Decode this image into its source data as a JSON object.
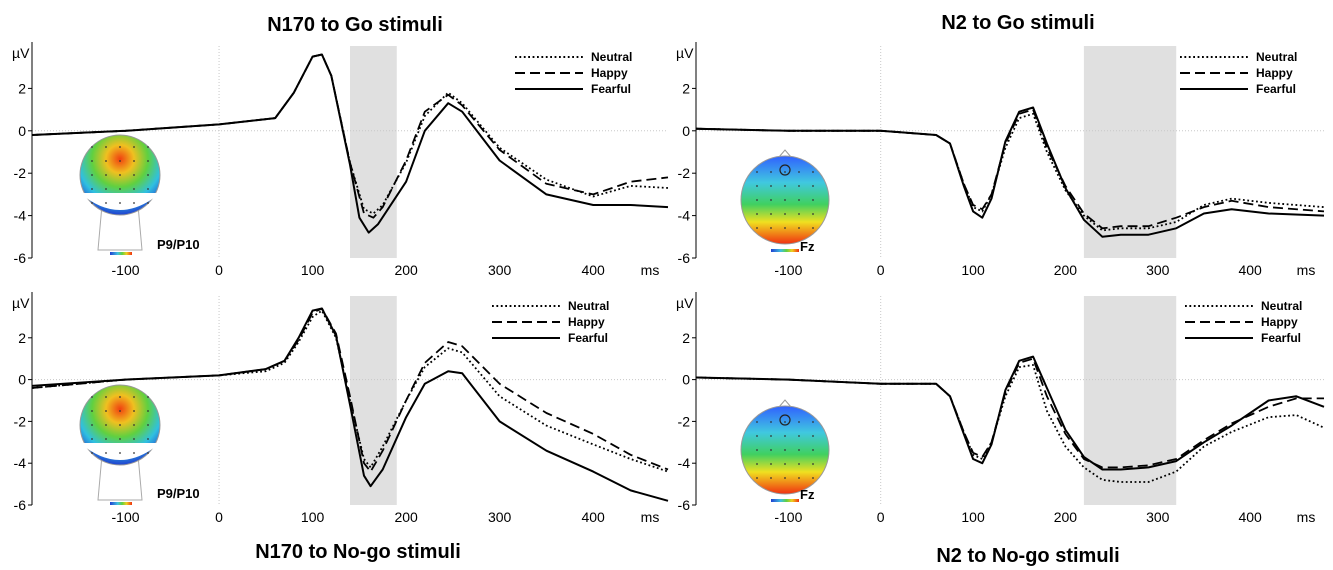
{
  "titles": {
    "n170_go": "N170 to Go stimuli",
    "n2_go": "N2 to Go stimuli",
    "n170_nogo": "N170 to No-go stimuli",
    "n2_nogo": "N2 to No-go stimuli"
  },
  "chart_data": [
    {
      "id": "n170_go",
      "type": "line",
      "title": "N170 to Go stimuli",
      "ylabel": "µV",
      "xlabel": "ms",
      "xlim": [
        -200,
        480
      ],
      "ylim": [
        -6,
        4
      ],
      "xticks": [
        -100,
        0,
        100,
        200,
        300,
        400
      ],
      "yticks": [
        -6,
        -4,
        -2,
        0,
        2
      ],
      "shaded_window_ms": [
        140,
        190
      ],
      "electrode_label": "P9/P10",
      "legend": [
        "Neutral",
        "Happy",
        "Fearful"
      ],
      "series": [
        {
          "name": "Neutral",
          "style": "dotted",
          "x": [
            -200,
            -100,
            0,
            60,
            80,
            100,
            110,
            120,
            140,
            155,
            165,
            175,
            200,
            220,
            245,
            260,
            300,
            350,
            400,
            440,
            480
          ],
          "y": [
            -0.2,
            0.0,
            0.3,
            0.6,
            1.8,
            3.5,
            3.6,
            2.6,
            -1.5,
            -3.7,
            -3.9,
            -3.5,
            -1.5,
            0.7,
            1.8,
            1.3,
            -0.8,
            -2.3,
            -3.1,
            -2.6,
            -2.7
          ]
        },
        {
          "name": "Happy",
          "style": "dashed",
          "x": [
            -200,
            -100,
            0,
            60,
            80,
            100,
            110,
            120,
            140,
            155,
            165,
            175,
            200,
            220,
            245,
            260,
            300,
            350,
            400,
            440,
            480
          ],
          "y": [
            -0.2,
            0.0,
            0.3,
            0.6,
            1.8,
            3.5,
            3.6,
            2.6,
            -1.5,
            -3.9,
            -4.1,
            -3.6,
            -1.4,
            0.9,
            1.7,
            1.2,
            -0.9,
            -2.5,
            -3.0,
            -2.4,
            -2.2
          ]
        },
        {
          "name": "Fearful",
          "style": "solid",
          "x": [
            -200,
            -100,
            0,
            60,
            80,
            100,
            110,
            120,
            140,
            150,
            160,
            170,
            200,
            220,
            245,
            260,
            300,
            350,
            400,
            440,
            480
          ],
          "y": [
            -0.2,
            0.0,
            0.3,
            0.6,
            1.8,
            3.5,
            3.6,
            2.6,
            -1.6,
            -4.1,
            -4.8,
            -4.4,
            -2.4,
            0.0,
            1.3,
            0.9,
            -1.4,
            -3.0,
            -3.5,
            -3.5,
            -3.6
          ]
        }
      ]
    },
    {
      "id": "n2_go",
      "type": "line",
      "title": "N2 to Go stimuli",
      "ylabel": "µV",
      "xlabel": "ms",
      "xlim": [
        -200,
        480
      ],
      "ylim": [
        -6,
        4
      ],
      "xticks": [
        -100,
        0,
        100,
        200,
        300,
        400
      ],
      "yticks": [
        -6,
        -4,
        -2,
        0,
        2
      ],
      "shaded_window_ms": [
        220,
        320
      ],
      "electrode_label": "Fz",
      "legend": [
        "Neutral",
        "Happy",
        "Fearful"
      ],
      "series": [
        {
          "name": "Neutral",
          "style": "dotted",
          "x": [
            -200,
            -100,
            0,
            60,
            75,
            90,
            100,
            110,
            120,
            135,
            150,
            165,
            180,
            200,
            220,
            240,
            260,
            290,
            320,
            350,
            380,
            420,
            480
          ],
          "y": [
            0.1,
            0.0,
            0.0,
            -0.2,
            -0.6,
            -2.5,
            -3.6,
            -3.8,
            -3.0,
            -0.8,
            0.6,
            0.8,
            -1.0,
            -2.8,
            -4.0,
            -4.7,
            -4.6,
            -4.6,
            -4.3,
            -3.5,
            -3.2,
            -3.4,
            -3.6
          ]
        },
        {
          "name": "Happy",
          "style": "dashed",
          "x": [
            -200,
            -100,
            0,
            60,
            75,
            90,
            100,
            110,
            120,
            135,
            150,
            165,
            180,
            200,
            220,
            240,
            260,
            290,
            320,
            350,
            380,
            420,
            480
          ],
          "y": [
            0.1,
            0.0,
            0.0,
            -0.2,
            -0.6,
            -2.5,
            -3.5,
            -3.7,
            -3.0,
            -0.6,
            0.8,
            1.0,
            -0.8,
            -2.6,
            -3.9,
            -4.6,
            -4.5,
            -4.5,
            -4.1,
            -3.6,
            -3.3,
            -3.6,
            -3.8
          ]
        },
        {
          "name": "Fearful",
          "style": "solid",
          "x": [
            -200,
            -100,
            0,
            60,
            75,
            90,
            100,
            110,
            120,
            135,
            150,
            165,
            180,
            200,
            220,
            240,
            260,
            290,
            320,
            350,
            380,
            420,
            480
          ],
          "y": [
            0.1,
            0.0,
            0.0,
            -0.2,
            -0.6,
            -2.6,
            -3.8,
            -4.1,
            -3.2,
            -0.5,
            0.9,
            1.1,
            -0.6,
            -2.7,
            -4.2,
            -5.0,
            -4.9,
            -4.9,
            -4.6,
            -3.9,
            -3.7,
            -3.9,
            -4.0
          ]
        }
      ]
    },
    {
      "id": "n170_nogo",
      "type": "line",
      "title": "N170 to No-go stimuli",
      "ylabel": "µV",
      "xlabel": "ms",
      "xlim": [
        -200,
        480
      ],
      "ylim": [
        -6,
        4
      ],
      "xticks": [
        -100,
        0,
        100,
        200,
        300,
        400
      ],
      "yticks": [
        -6,
        -4,
        -2,
        0,
        2
      ],
      "shaded_window_ms": [
        140,
        190
      ],
      "electrode_label": "P9/P10",
      "legend": [
        "Neutral",
        "Happy",
        "Fearful"
      ],
      "series": [
        {
          "name": "Neutral",
          "style": "dotted",
          "x": [
            -200,
            -100,
            0,
            50,
            70,
            85,
            100,
            110,
            125,
            140,
            155,
            162,
            175,
            200,
            220,
            245,
            260,
            300,
            350,
            400,
            440,
            480
          ],
          "y": [
            -0.4,
            0.0,
            0.2,
            0.4,
            0.8,
            1.8,
            3.0,
            3.3,
            2.0,
            -1.0,
            -3.8,
            -4.2,
            -3.2,
            -1.0,
            0.6,
            1.5,
            1.3,
            -0.8,
            -2.2,
            -3.1,
            -3.8,
            -4.4
          ]
        },
        {
          "name": "Happy",
          "style": "dashed",
          "x": [
            -200,
            -100,
            0,
            50,
            70,
            85,
            100,
            110,
            125,
            140,
            155,
            162,
            175,
            200,
            220,
            245,
            260,
            300,
            350,
            400,
            440,
            480
          ],
          "y": [
            -0.4,
            0.0,
            0.2,
            0.5,
            0.9,
            1.9,
            3.2,
            3.4,
            2.2,
            -0.8,
            -4.0,
            -4.4,
            -3.4,
            -1.0,
            0.8,
            1.8,
            1.6,
            -0.2,
            -1.6,
            -2.6,
            -3.6,
            -4.3
          ]
        },
        {
          "name": "Fearful",
          "style": "solid",
          "x": [
            -200,
            -100,
            0,
            50,
            70,
            85,
            100,
            110,
            125,
            140,
            155,
            162,
            175,
            200,
            220,
            245,
            260,
            300,
            350,
            400,
            440,
            480
          ],
          "y": [
            -0.3,
            0.0,
            0.2,
            0.5,
            0.9,
            2.0,
            3.3,
            3.4,
            2.1,
            -1.2,
            -4.6,
            -5.1,
            -4.3,
            -1.8,
            -0.2,
            0.4,
            0.3,
            -2.0,
            -3.4,
            -4.4,
            -5.3,
            -5.8
          ]
        }
      ]
    },
    {
      "id": "n2_nogo",
      "type": "line",
      "title": "N2 to No-go stimuli",
      "ylabel": "µV",
      "xlabel": "ms",
      "xlim": [
        -200,
        480
      ],
      "ylim": [
        -6,
        4
      ],
      "xticks": [
        -100,
        0,
        100,
        200,
        300,
        400
      ],
      "yticks": [
        -6,
        -4,
        -2,
        0,
        2
      ],
      "shaded_window_ms": [
        220,
        320
      ],
      "electrode_label": "Fz",
      "legend": [
        "Neutral",
        "Happy",
        "Fearful"
      ],
      "series": [
        {
          "name": "Neutral",
          "style": "dotted",
          "x": [
            -200,
            -100,
            0,
            60,
            75,
            90,
            100,
            110,
            120,
            135,
            150,
            165,
            180,
            200,
            220,
            240,
            260,
            290,
            320,
            350,
            380,
            420,
            450,
            480
          ],
          "y": [
            0.1,
            0.0,
            -0.2,
            -0.2,
            -0.8,
            -2.5,
            -3.6,
            -3.8,
            -3.0,
            -0.8,
            0.6,
            0.7,
            -1.5,
            -3.2,
            -4.2,
            -4.8,
            -4.9,
            -4.9,
            -4.4,
            -3.2,
            -2.5,
            -1.8,
            -1.7,
            -2.3
          ]
        },
        {
          "name": "Happy",
          "style": "dashed",
          "x": [
            -200,
            -100,
            0,
            60,
            75,
            90,
            100,
            110,
            120,
            135,
            150,
            165,
            180,
            200,
            220,
            240,
            260,
            290,
            320,
            350,
            380,
            420,
            450,
            480
          ],
          "y": [
            0.1,
            0.0,
            -0.2,
            -0.2,
            -0.8,
            -2.5,
            -3.5,
            -3.7,
            -3.0,
            -0.6,
            0.8,
            1.0,
            -0.8,
            -2.6,
            -3.8,
            -4.2,
            -4.2,
            -4.1,
            -3.8,
            -2.9,
            -2.1,
            -1.3,
            -0.9,
            -0.9
          ]
        },
        {
          "name": "Fearful",
          "style": "solid",
          "x": [
            -200,
            -100,
            0,
            60,
            75,
            90,
            100,
            110,
            120,
            135,
            150,
            165,
            180,
            200,
            220,
            240,
            260,
            290,
            320,
            350,
            380,
            420,
            450,
            480
          ],
          "y": [
            0.1,
            0.0,
            -0.2,
            -0.2,
            -0.8,
            -2.6,
            -3.8,
            -4.0,
            -3.1,
            -0.5,
            0.9,
            1.1,
            -0.4,
            -2.4,
            -3.7,
            -4.3,
            -4.3,
            -4.2,
            -3.9,
            -3.0,
            -2.2,
            -1.0,
            -0.8,
            -1.3
          ]
        }
      ]
    }
  ]
}
